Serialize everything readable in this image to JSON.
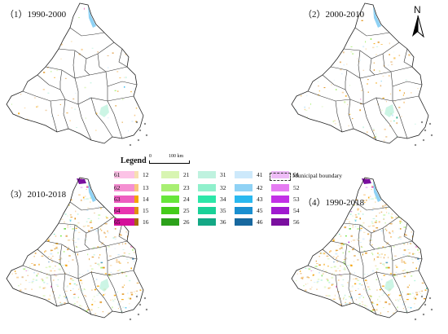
{
  "panels": [
    {
      "title": "（1）1990-2000"
    },
    {
      "title": "（2）2000-2010"
    },
    {
      "title": "（3）2010-2018"
    },
    {
      "title": "（4）1990-2018"
    }
  ],
  "north_label": "N",
  "legend": {
    "title": "Legend",
    "scale_zero": "0",
    "scale_end": "100 km",
    "boundary_label": "Municipal boundary",
    "items": [
      {
        "code": "12",
        "color": "#f7dfb2"
      },
      {
        "code": "13",
        "color": "#f8c57e"
      },
      {
        "code": "14",
        "color": "#f5a300"
      },
      {
        "code": "15",
        "color": "#e08f10"
      },
      {
        "code": "16",
        "color": "#a8680c"
      },
      {
        "code": "21",
        "color": "#d8f5b2"
      },
      {
        "code": "23",
        "color": "#a8ef72"
      },
      {
        "code": "24",
        "color": "#66e63a"
      },
      {
        "code": "25",
        "color": "#44cc1a"
      },
      {
        "code": "26",
        "color": "#2ca11a"
      },
      {
        "code": "31",
        "color": "#bff2df"
      },
      {
        "code": "32",
        "color": "#8ff0cc"
      },
      {
        "code": "34",
        "color": "#2ce6a8"
      },
      {
        "code": "35",
        "color": "#1ad198"
      },
      {
        "code": "36",
        "color": "#14a885"
      },
      {
        "code": "41",
        "color": "#cde9fb"
      },
      {
        "code": "42",
        "color": "#8fd2f5"
      },
      {
        "code": "43",
        "color": "#2ab8ef"
      },
      {
        "code": "45",
        "color": "#1a8fd0"
      },
      {
        "code": "46",
        "color": "#17689f"
      },
      {
        "code": "51",
        "color": "#eebcf7"
      },
      {
        "code": "52",
        "color": "#e57cf2"
      },
      {
        "code": "53",
        "color": "#c230e6"
      },
      {
        "code": "54",
        "color": "#a01ad0"
      },
      {
        "code": "56",
        "color": "#7a0f9f"
      },
      {
        "code": "61",
        "color": "#fcc3e6"
      },
      {
        "code": "62",
        "color": "#f58fd2"
      },
      {
        "code": "63",
        "color": "#ee5dc0"
      },
      {
        "code": "64",
        "color": "#e835b0"
      },
      {
        "code": "65",
        "color": "#d4109a"
      }
    ]
  }
}
